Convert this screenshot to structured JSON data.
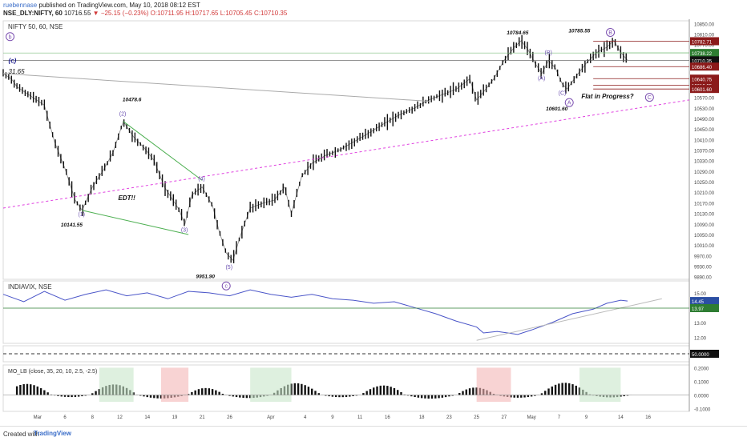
{
  "header": {
    "author": "ruebennase",
    "published_on": "published on TradingView.com, May 10, 2018 08:12 EST",
    "symbol": "NSE_DLY:NIFTY, 60",
    "last": "10716.55",
    "change": "−25.15 (−0.23%)",
    "ohlc": "O:10711.95 H:10717.65 L:10705.45 C:10710.35"
  },
  "footer": {
    "created_with": "Created with",
    "brand": "TradingView"
  },
  "chart_data": [
    {
      "type": "line",
      "title": "NIFTY 50, 60, NSE",
      "x_ticks": [
        {
          "label": "Mar",
          "t": 0.05
        },
        {
          "label": "6",
          "t": 0.09
        },
        {
          "label": "8",
          "t": 0.13
        },
        {
          "label": "12",
          "t": 0.17
        },
        {
          "label": "14",
          "t": 0.21
        },
        {
          "label": "19",
          "t": 0.25
        },
        {
          "label": "21",
          "t": 0.29
        },
        {
          "label": "26",
          "t": 0.33
        },
        {
          "label": "Apr",
          "t": 0.39
        },
        {
          "label": "4",
          "t": 0.44
        },
        {
          "label": "9",
          "t": 0.48
        },
        {
          "label": "11",
          "t": 0.52
        },
        {
          "label": "16",
          "t": 0.56
        },
        {
          "label": "18",
          "t": 0.61
        },
        {
          "label": "23",
          "t": 0.65
        },
        {
          "label": "25",
          "t": 0.69
        },
        {
          "label": "27",
          "t": 0.73
        },
        {
          "label": "May",
          "t": 0.77
        },
        {
          "label": "7",
          "t": 0.81
        },
        {
          "label": "9",
          "t": 0.85
        },
        {
          "label": "14",
          "t": 0.9
        },
        {
          "label": "16",
          "t": 0.94
        }
      ],
      "y_ticks": [
        9890,
        9930,
        9970,
        10010,
        10050,
        10090,
        10130,
        10170,
        10210,
        10250,
        10290,
        10330,
        10370,
        10410,
        10450,
        10490,
        10530,
        10570,
        10610,
        10650,
        10690,
        10730,
        10770,
        10810,
        10850
      ],
      "ylim": [
        9880,
        10860
      ],
      "price_labels": [
        {
          "value": 10782.71,
          "text": "10782.71",
          "color": "#8b1a1a"
        },
        {
          "value": 10738.22,
          "text": "10738.22",
          "color": "#2e7d32"
        },
        {
          "value": 10710.35,
          "text": "10710.35",
          "color": "#111111"
        },
        {
          "value": 10686.4,
          "text": "10686.40",
          "color": "#8b1a1a"
        },
        {
          "value": 10640.75,
          "text": "10640.75",
          "color": "#8b1a1a"
        },
        {
          "value": 10616.05,
          "text": "10616.05",
          "color": "#8b1a1a"
        },
        {
          "value": 10601.6,
          "text": "10601.60",
          "color": "#8b1a1a"
        }
      ],
      "series": [
        {
          "values": [
            [
              0.0,
              10660
            ],
            [
              0.012,
              10640
            ],
            [
              0.02,
              10610
            ],
            [
              0.04,
              10575
            ],
            [
              0.06,
              10540
            ],
            [
              0.075,
              10400
            ],
            [
              0.09,
              10300
            ],
            [
              0.105,
              10180
            ],
            [
              0.115,
              10141.55
            ],
            [
              0.13,
              10230
            ],
            [
              0.145,
              10290
            ],
            [
              0.16,
              10360
            ],
            [
              0.175,
              10478.6
            ],
            [
              0.19,
              10420
            ],
            [
              0.205,
              10380
            ],
            [
              0.22,
              10330
            ],
            [
              0.235,
              10230
            ],
            [
              0.255,
              10150
            ],
            [
              0.265,
              10090
            ],
            [
              0.275,
              10200
            ],
            [
              0.29,
              10230
            ],
            [
              0.305,
              10160
            ],
            [
              0.315,
              10060
            ],
            [
              0.325,
              9980
            ],
            [
              0.335,
              9951.9
            ],
            [
              0.345,
              10040
            ],
            [
              0.36,
              10150
            ],
            [
              0.38,
              10170
            ],
            [
              0.395,
              10180
            ],
            [
              0.41,
              10230
            ],
            [
              0.42,
              10130
            ],
            [
              0.435,
              10270
            ],
            [
              0.45,
              10320
            ],
            [
              0.47,
              10350
            ],
            [
              0.49,
              10370
            ],
            [
              0.51,
              10400
            ],
            [
              0.53,
              10430
            ],
            [
              0.555,
              10470
            ],
            [
              0.575,
              10500
            ],
            [
              0.6,
              10530
            ],
            [
              0.62,
              10560
            ],
            [
              0.64,
              10580
            ],
            [
              0.66,
              10600
            ],
            [
              0.68,
              10640
            ],
            [
              0.69,
              10560
            ],
            [
              0.7,
              10590
            ],
            [
              0.715,
              10640
            ],
            [
              0.73,
              10710
            ],
            [
              0.745,
              10760
            ],
            [
              0.755,
              10784.65
            ],
            [
              0.765,
              10750
            ],
            [
              0.775,
              10700
            ],
            [
              0.785,
              10660
            ],
            [
              0.795,
              10710
            ],
            [
              0.805,
              10680
            ],
            [
              0.815,
              10620
            ],
            [
              0.822,
              10601.6
            ],
            [
              0.835,
              10650
            ],
            [
              0.85,
              10700
            ],
            [
              0.865,
              10740
            ],
            [
              0.88,
              10760
            ],
            [
              0.89,
              10785.55
            ],
            [
              0.9,
              10740
            ],
            [
              0.91,
              10710.35
            ]
          ]
        }
      ],
      "wave_labels": [
        {
          "text": "(1)",
          "t": 0.115,
          "y": 10120,
          "color": "#6a4fb0"
        },
        {
          "text": "(2)",
          "t": 0.175,
          "y": 10500,
          "color": "#6a4fb0"
        },
        {
          "text": "(3)",
          "t": 0.265,
          "y": 10060,
          "color": "#6a4fb0"
        },
        {
          "text": "(4)",
          "t": 0.29,
          "y": 10255,
          "color": "#6a4fb0"
        },
        {
          "text": "(5)",
          "t": 0.33,
          "y": 9920,
          "color": "#6a4fb0"
        },
        {
          "text": "(A)",
          "t": 0.785,
          "y": 10635,
          "color": "#6a4fb0"
        },
        {
          "text": "(B)",
          "t": 0.795,
          "y": 10732,
          "color": "#6a4fb0"
        },
        {
          "text": "(C)",
          "t": 0.815,
          "y": 10580,
          "color": "#6a4fb0"
        }
      ],
      "price_annotations": [
        {
          "text": "10141.55",
          "t": 0.098,
          "y": 10080
        },
        {
          "text": "10478.6",
          "t": 0.188,
          "y": 10555
        },
        {
          "text": "9951.90",
          "t": 0.295,
          "y": 9885
        },
        {
          "text": "10784.65",
          "t": 0.748,
          "y": 10808
        },
        {
          "text": "10601.60",
          "t": 0.805,
          "y": 10520
        },
        {
          "text": "10785.55",
          "t": 0.838,
          "y": 10816
        }
      ],
      "circle_labels": [
        {
          "text": "b",
          "t": 0.01,
          "y": 10800
        },
        {
          "text": "c",
          "t": 0.325,
          "y": 9855
        },
        {
          "text": "A",
          "t": 0.825,
          "y": 10550
        },
        {
          "text": "B",
          "t": 0.885,
          "y": 10816
        },
        {
          "text": "C",
          "t": 0.942,
          "y": 10570
        }
      ],
      "text_annotations": [
        {
          "text": "(c)",
          "t": 0.01,
          "y": 10700,
          "color": "#1a1a8a",
          "bold": true
        },
        {
          "text": "31.65",
          "t": 0.01,
          "y": 10660,
          "color": "#111111",
          "bold": false
        },
        {
          "text": "EDT!!",
          "t": 0.17,
          "y": 10180,
          "color": "#111111",
          "bold": true
        },
        {
          "text": "Flat in Progress?",
          "t": 0.845,
          "y": 10565,
          "color": "#111111",
          "bold": true
        }
      ]
    },
    {
      "type": "line",
      "title": "INDIAVIX, NSE",
      "y_ticks": [
        12.0,
        13.0,
        14.0,
        15.0
      ],
      "ylim": [
        11.6,
        15.8
      ],
      "price_labels": [
        {
          "value": 14.45,
          "text": "14.45",
          "color": "#2b4fa3"
        },
        {
          "value": 13.97,
          "text": "13.97",
          "color": "#2e7d32"
        }
      ],
      "series": [
        {
          "values": [
            [
              0.0,
              14.9
            ],
            [
              0.03,
              14.4
            ],
            [
              0.06,
              15.1
            ],
            [
              0.09,
              14.5
            ],
            [
              0.12,
              14.9
            ],
            [
              0.15,
              15.2
            ],
            [
              0.18,
              14.8
            ],
            [
              0.21,
              15.0
            ],
            [
              0.24,
              14.6
            ],
            [
              0.27,
              15.1
            ],
            [
              0.3,
              15.0
            ],
            [
              0.33,
              14.8
            ],
            [
              0.36,
              15.2
            ],
            [
              0.39,
              14.9
            ],
            [
              0.42,
              14.7
            ],
            [
              0.45,
              14.9
            ],
            [
              0.48,
              14.6
            ],
            [
              0.51,
              14.5
            ],
            [
              0.54,
              14.3
            ],
            [
              0.57,
              14.4
            ],
            [
              0.6,
              14.0
            ],
            [
              0.63,
              13.6
            ],
            [
              0.66,
              13.1
            ],
            [
              0.69,
              12.7
            ],
            [
              0.7,
              12.3
            ],
            [
              0.72,
              12.4
            ],
            [
              0.75,
              12.2
            ],
            [
              0.77,
              12.5
            ],
            [
              0.8,
              13.0
            ],
            [
              0.83,
              13.6
            ],
            [
              0.86,
              13.9
            ],
            [
              0.88,
              14.3
            ],
            [
              0.9,
              14.5
            ],
            [
              0.91,
              14.45
            ]
          ]
        }
      ]
    },
    {
      "type": "line",
      "y_ticks": [
        50.0
      ],
      "price_labels": [
        {
          "value": 50.0,
          "text": "50.0000",
          "color": "#111111"
        }
      ]
    },
    {
      "type": "bar",
      "title": "MO_LB (close, 35, 20, 10, 2.5, -2.5)",
      "y_ticks": [
        -0.1,
        0.0,
        0.1,
        0.2
      ],
      "ylim": [
        -0.12,
        0.22
      ]
    }
  ]
}
